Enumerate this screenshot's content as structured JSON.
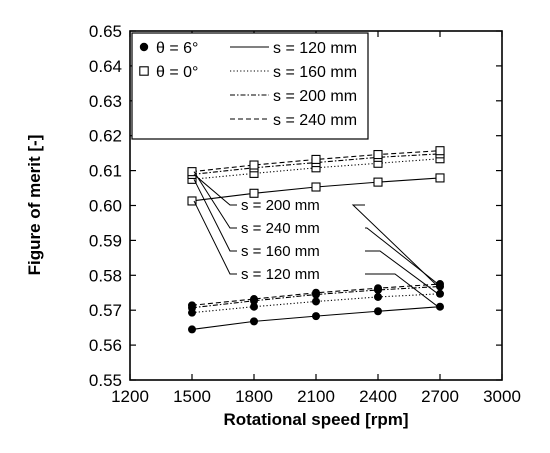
{
  "chart_data": {
    "type": "line",
    "xlabel": "Rotational speed [rpm]",
    "ylabel": "Figure of merit [-]",
    "xlim": [
      1200,
      3000
    ],
    "ylim": [
      0.55,
      0.65
    ],
    "xticks": [
      "1200",
      "1500",
      "1800",
      "2100",
      "2400",
      "2700",
      "3000"
    ],
    "yticks": [
      "0.55",
      "0.56",
      "0.57",
      "0.58",
      "0.59",
      "0.60",
      "0.61",
      "0.62",
      "0.63",
      "0.64",
      "0.65"
    ],
    "x": [
      1500,
      1800,
      2100,
      2400,
      2700
    ],
    "grid": false,
    "legend_position": "top-left",
    "legend_markers": [
      {
        "label": "θ = 6°",
        "marker": "filled-circle"
      },
      {
        "label": "θ = 0°",
        "marker": "open-square"
      }
    ],
    "legend_lines": [
      {
        "label": "s = 120 mm",
        "dash": "solid"
      },
      {
        "label": "s = 160 mm",
        "dash": "dotted"
      },
      {
        "label": "s = 200 mm",
        "dash": "dash-dot"
      },
      {
        "label": "s = 240 mm",
        "dash": "dashed"
      }
    ],
    "series": [
      {
        "theta": "6°",
        "s": "120 mm",
        "dash": "solid",
        "marker": "filled-circle",
        "values": [
          0.5645,
          0.5668,
          0.5683,
          0.5697,
          0.571
        ]
      },
      {
        "theta": "6°",
        "s": "160 mm",
        "dash": "dotted",
        "marker": "filled-circle",
        "values": [
          0.5693,
          0.571,
          0.5725,
          0.5738,
          0.5747
        ]
      },
      {
        "theta": "6°",
        "s": "200 mm",
        "dash": "dash-dot",
        "marker": "filled-circle",
        "values": [
          0.5707,
          0.5727,
          0.5745,
          0.5758,
          0.5768
        ]
      },
      {
        "theta": "6°",
        "s": "240 mm",
        "dash": "dashed",
        "marker": "filled-circle",
        "values": [
          0.5714,
          0.5732,
          0.575,
          0.5763,
          0.5775
        ]
      },
      {
        "theta": "0°",
        "s": "120 mm",
        "dash": "solid",
        "marker": "open-square",
        "values": [
          0.6013,
          0.6035,
          0.6053,
          0.6067,
          0.6079
        ]
      },
      {
        "theta": "0°",
        "s": "160 mm",
        "dash": "dotted",
        "marker": "open-square",
        "values": [
          0.6075,
          0.6092,
          0.6108,
          0.6121,
          0.6134
        ]
      },
      {
        "theta": "0°",
        "s": "200 mm",
        "dash": "dash-dot",
        "marker": "open-square",
        "values": [
          0.6089,
          0.6108,
          0.6123,
          0.6138,
          0.6148
        ]
      },
      {
        "theta": "0°",
        "s": "240 mm",
        "dash": "dashed",
        "marker": "open-square",
        "values": [
          0.6097,
          0.6116,
          0.6132,
          0.6146,
          0.6157
        ]
      }
    ],
    "annotations": [
      {
        "text": "s = 200 mm",
        "points_to": [
          {
            "x": 1500,
            "y": 0.6089
          },
          {
            "x": 2700,
            "y": 0.5768
          }
        ]
      },
      {
        "text": "s = 240 mm",
        "points_to": [
          {
            "x": 1500,
            "y": 0.6097
          },
          {
            "x": 2700,
            "y": 0.5775
          }
        ]
      },
      {
        "text": "s = 160 mm",
        "points_to": [
          {
            "x": 1500,
            "y": 0.6075
          },
          {
            "x": 2700,
            "y": 0.5747
          }
        ]
      },
      {
        "text": "s = 120 mm",
        "points_to": [
          {
            "x": 1500,
            "y": 0.6013
          },
          {
            "x": 2700,
            "y": 0.571
          }
        ]
      }
    ]
  }
}
